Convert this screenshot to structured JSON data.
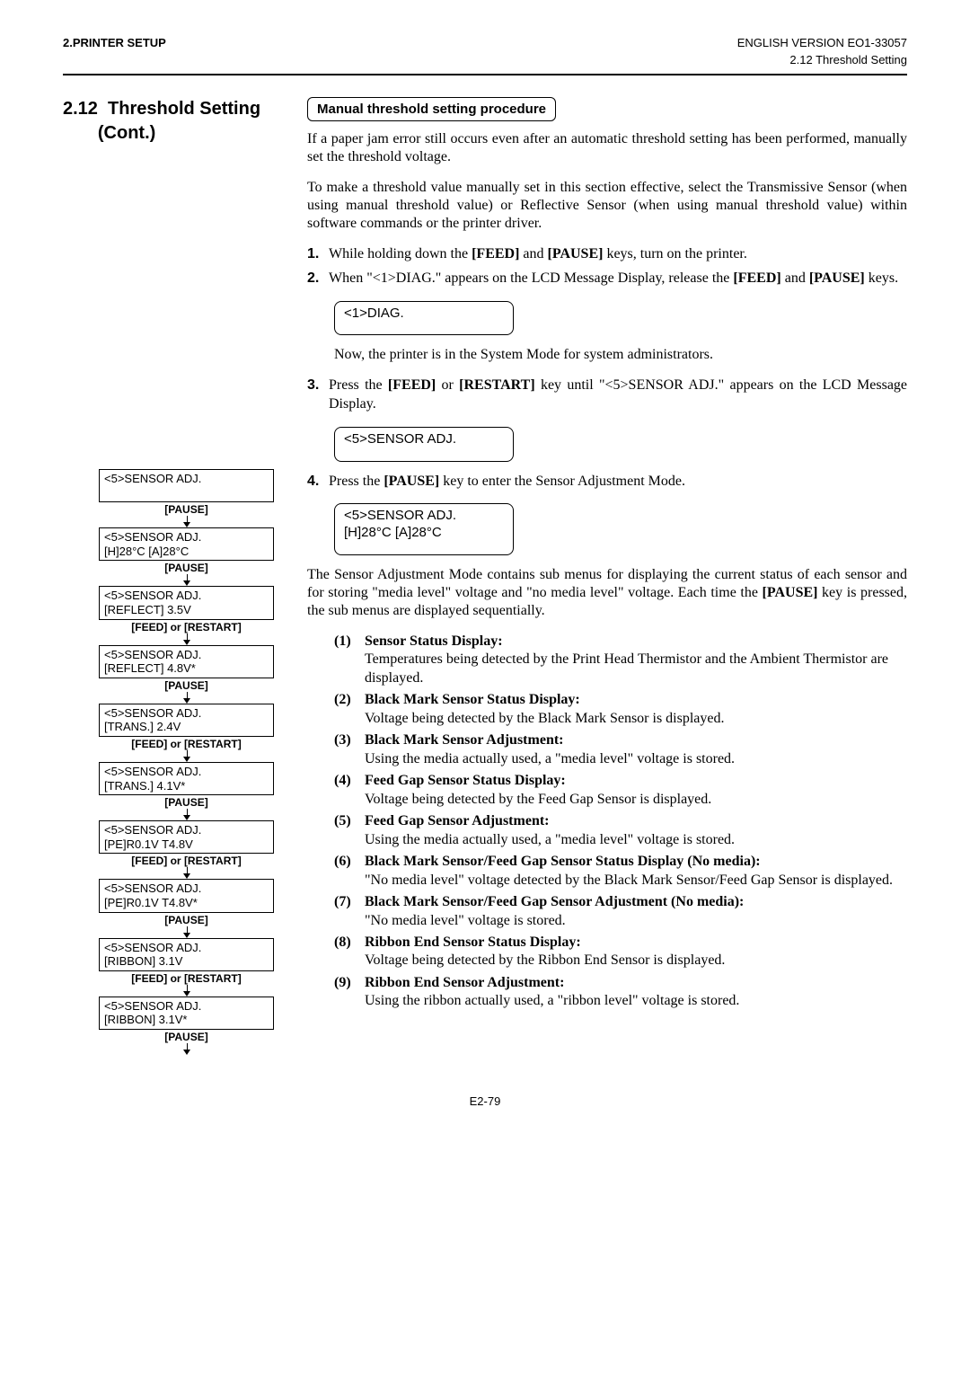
{
  "header": {
    "left": "2.PRINTER SETUP",
    "right": "ENGLISH VERSION EO1-33057",
    "sub": "2.12 Threshold Setting"
  },
  "section": {
    "num": "2.12",
    "title": "Threshold Setting (Cont.)"
  },
  "procedure_title": "Manual threshold setting procedure",
  "para1": "If a paper jam error still occurs even after an automatic threshold setting has been performed, manually set the threshold voltage.",
  "para2": "To make a threshold value manually set in this section effective, select the Transmissive Sensor (when using manual threshold value) or Reflective Sensor (when using manual threshold value) within software commands or the printer driver.",
  "steps": {
    "s1": "While holding down the [FEED] and [PAUSE] keys, turn on the printer.",
    "s2": "When \"<1>DIAG.\" appears on the LCD Message Display, release the [FEED] and [PAUSE] keys.",
    "lcd1": "<1>DIAG.",
    "after_lcd1": "Now, the printer is in the System Mode for system administrators.",
    "s3": "Press the [FEED] or [RESTART] key until \"<5>SENSOR ADJ.\" appears on the LCD Message Display.",
    "lcd2": "<5>SENSOR ADJ.",
    "s4": "Press the [PAUSE] key to enter the Sensor Adjustment Mode.",
    "lcd3a": "<5>SENSOR ADJ.",
    "lcd3b": "[H]28°C  [A]28°C"
  },
  "para3": "The Sensor Adjustment Mode contains sub menus for displaying the current status of each sensor and for storing \"media level\" voltage and \"no media level\" voltage.  Each time the [PAUSE] key is pressed, the sub menus are displayed sequentially.",
  "submenus": {
    "i1t": "Sensor Status Display:",
    "i1d": "Temperatures being detected by the Print Head Thermistor and the Ambient Thermistor are displayed.",
    "i2t": "Black Mark Sensor Status Display:",
    "i2d": "Voltage being detected by the Black Mark Sensor is displayed.",
    "i3t": "Black Mark Sensor Adjustment:",
    "i3d": "Using the media actually used, a \"media level\" voltage is stored.",
    "i4t": "Feed Gap Sensor Status Display:",
    "i4d": "Voltage being detected by the Feed Gap Sensor is displayed.",
    "i5t": "Feed Gap Sensor Adjustment:",
    "i5d": "Using the media actually used, a \"media level\" voltage is stored.",
    "i6t": "Black Mark Sensor/Feed Gap Sensor Status Display (No media):",
    "i6d": "\"No media level\" voltage detected by the Black Mark Sensor/Feed Gap Sensor is displayed.",
    "i7t": "Black Mark Sensor/Feed Gap Sensor Adjustment (No media):",
    "i7d": "\"No media level\" voltage is stored.",
    "i8t": "Ribbon End Sensor Status Display:",
    "i8d": "Voltage being detected by the Ribbon End Sensor is displayed.",
    "i9t": "Ribbon End Sensor Adjustment:",
    "i9d": "Using the ribbon actually used, a \"ribbon level\" voltage is stored."
  },
  "flow": {
    "b1": "<5>SENSOR ADJ.",
    "k1": "[PAUSE]",
    "b2a": "<5>SENSOR ADJ.",
    "b2b": "[H]28°C  [A]28°C",
    "k2": "[PAUSE]",
    "b3a": "<5>SENSOR ADJ.",
    "b3b": "[REFLECT] 3.5V",
    "k3": "[FEED] or [RESTART]",
    "b4a": "<5>SENSOR ADJ.",
    "b4b": "[REFLECT] 4.8V*",
    "k4": "[PAUSE]",
    "b5a": "<5>SENSOR ADJ.",
    "b5b": "[TRANS.] 2.4V",
    "k5": "[FEED] or [RESTART]",
    "b6a": "<5>SENSOR ADJ.",
    "b6b": "[TRANS.] 4.1V*",
    "k6": "[PAUSE]",
    "b7a": "<5>SENSOR ADJ.",
    "b7b": "[PE]R0.1V T4.8V",
    "k7": "[FEED] or [RESTART]",
    "b8a": "<5>SENSOR ADJ.",
    "b8b": "[PE]R0.1V T4.8V*",
    "k8": "[PAUSE]",
    "b9a": "<5>SENSOR ADJ.",
    "b9b": "[RIBBON] 3.1V",
    "k9": "[FEED] or [RESTART]",
    "b10a": "<5>SENSOR ADJ.",
    "b10b": "[RIBBON] 3.1V*",
    "k10": "[PAUSE]"
  },
  "page_num": "E2-79"
}
